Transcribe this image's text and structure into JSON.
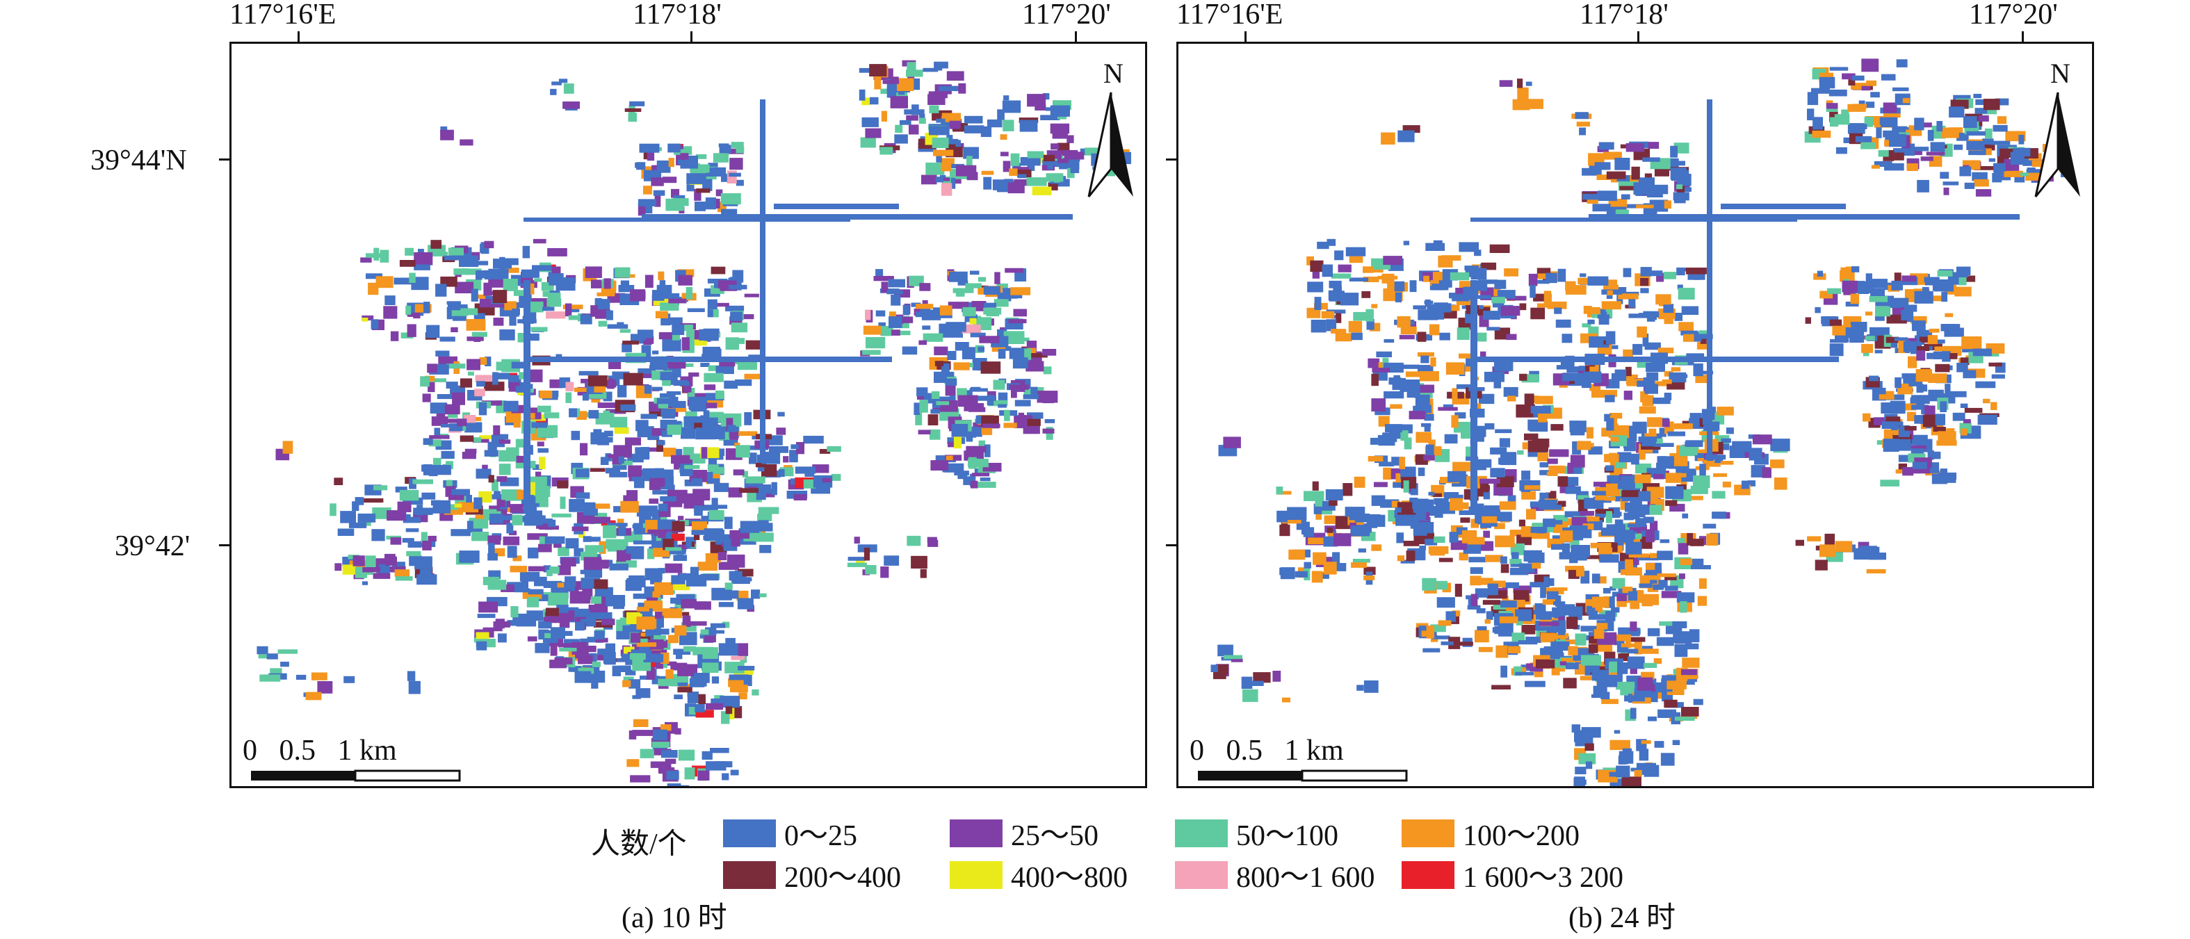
{
  "top_axis": {
    "labels": [
      "117°16'E",
      "117°18'",
      "117°20'"
    ]
  },
  "left_axis": {
    "labels": [
      "39°44'N",
      "39°42'"
    ]
  },
  "north_label": "N",
  "scale_bar": {
    "text": "0   0.5   1 km"
  },
  "legend": {
    "title": "人数/个",
    "items": [
      {
        "label": "0～25",
        "color": "#4472c4"
      },
      {
        "label": "25～50",
        "color": "#7f3fa6"
      },
      {
        "label": "50～100",
        "color": "#5fcaa0"
      },
      {
        "label": "100～200",
        "color": "#f4961f"
      },
      {
        "label": "200～400",
        "color": "#7a2c3a"
      },
      {
        "label": "400～800",
        "color": "#eaea1a"
      },
      {
        "label": "800～1 600",
        "color": "#f4a3b8"
      },
      {
        "label": "1 600～3 200",
        "color": "#e8202a"
      }
    ]
  },
  "panels": [
    {
      "caption": "(a) 10 时"
    },
    {
      "caption": "(b) 24 时"
    }
  ]
}
